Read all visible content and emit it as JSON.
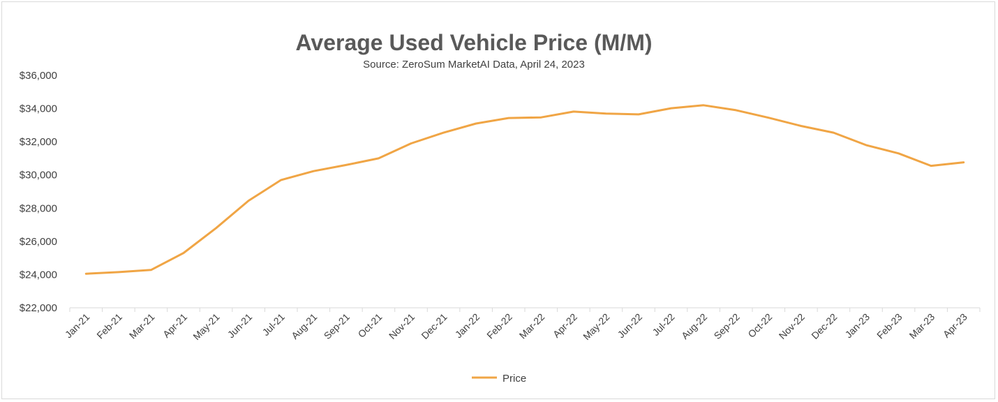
{
  "chart_data": {
    "type": "line",
    "title": "Average Used Vehicle Price (M/M)",
    "subtitle": "Source: ZeroSum MarketAI Data, April 24, 2023",
    "xlabel": "",
    "ylabel": "",
    "ylim": [
      22000,
      36000
    ],
    "ytick_step": 2000,
    "ytick_labels": [
      "$22,000",
      "$24,000",
      "$26,000",
      "$28,000",
      "$30,000",
      "$32,000",
      "$34,000",
      "$36,000"
    ],
    "grid": false,
    "legend_position": "bottom-center",
    "categories": [
      "Jan-21",
      "Feb-21",
      "Mar-21",
      "Apr-21",
      "May-21",
      "Jun-21",
      "Jul-21",
      "Aug-21",
      "Sep-21",
      "Oct-21",
      "Nov-21",
      "Dec-21",
      "Jan-22",
      "Feb-22",
      "Mar-22",
      "Apr-22",
      "May-22",
      "Jun-22",
      "Jul-22",
      "Aug-22",
      "Sep-22",
      "Oct-22",
      "Nov-22",
      "Dec-22",
      "Jan-23",
      "Feb-23",
      "Mar-23",
      "Apr-23"
    ],
    "series": [
      {
        "name": "Price",
        "color": "#F0A545",
        "values": [
          24050,
          24150,
          24280,
          25300,
          26800,
          28450,
          29700,
          30230,
          30600,
          31000,
          31900,
          32550,
          33100,
          33430,
          33470,
          33820,
          33700,
          33650,
          34020,
          34200,
          33900,
          33450,
          32950,
          32550,
          31800,
          31300,
          30550,
          30760
        ]
      }
    ]
  }
}
